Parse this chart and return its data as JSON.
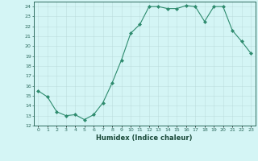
{
  "x": [
    0,
    1,
    2,
    3,
    4,
    5,
    6,
    7,
    8,
    9,
    10,
    11,
    12,
    13,
    14,
    15,
    16,
    17,
    18,
    19,
    20,
    21,
    22,
    23
  ],
  "y": [
    15.5,
    14.9,
    13.4,
    13.0,
    13.1,
    12.6,
    13.1,
    14.3,
    16.3,
    18.6,
    21.3,
    22.2,
    24.0,
    24.0,
    23.8,
    23.8,
    24.1,
    24.0,
    22.5,
    24.0,
    24.0,
    21.6,
    20.5,
    19.3
  ],
  "line_color": "#2e8b6e",
  "marker_color": "#2e8b6e",
  "bg_color": "#d4f5f5",
  "grid_color": "#b8d8d8",
  "xlabel": "Humidex (Indice chaleur)",
  "xlim": [
    -0.5,
    23.5
  ],
  "ylim": [
    12,
    24.5
  ],
  "yticks": [
    12,
    13,
    14,
    15,
    16,
    17,
    18,
    19,
    20,
    21,
    22,
    23,
    24
  ],
  "xtick_labels": [
    "0",
    "1",
    "2",
    "3",
    "4",
    "5",
    "6",
    "7",
    "8",
    "9",
    "10",
    "11",
    "12",
    "13",
    "14",
    "15",
    "16",
    "17",
    "18",
    "19",
    "20",
    "21",
    "22",
    "23"
  ],
  "tick_color": "#2e6b5e",
  "spine_color": "#2e6b5e",
  "label_color": "#1a4a3a"
}
